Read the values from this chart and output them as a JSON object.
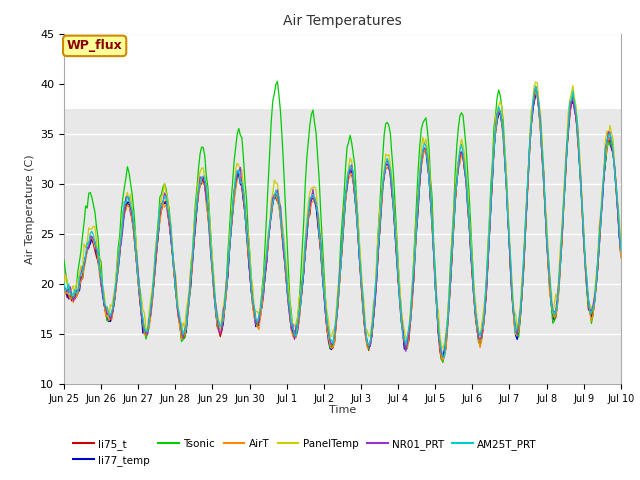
{
  "title": "Air Temperatures",
  "xlabel": "Time",
  "ylabel": "Air Temperature (C)",
  "ylim": [
    10,
    45
  ],
  "xlim_start": 0,
  "xlim_end": 360,
  "background_color": "#ffffff",
  "plot_bg_color": "#ffffff",
  "gray_band_ymin": 10,
  "gray_band_ymax": 37.5,
  "gray_band_color": "#e8e8e8",
  "grid_color": "#ffffff",
  "series_colors": {
    "li75_t": "#cc0000",
    "li77_temp": "#0000cc",
    "Tsonic": "#00cc00",
    "AirT": "#ff8800",
    "PanelTemp": "#cccc00",
    "NR01_PRT": "#9933cc",
    "AM25T_PRT": "#00cccc"
  },
  "annotation_text": "WP_flux",
  "annotation_bg": "#ffff99",
  "annotation_border": "#cc8800",
  "tick_labels": [
    "Jun 25",
    "Jun 26",
    "Jun 27",
    "Jun 28",
    "Jun 29",
    "Jun 30",
    "Jul 1",
    "Jul 2",
    "Jul 3",
    "Jul 4",
    "Jul 5",
    "Jul 6",
    "Jul 7",
    "Jul 8",
    "Jul 9",
    "Jul 10"
  ],
  "tick_positions": [
    0,
    24,
    48,
    72,
    96,
    120,
    144,
    168,
    192,
    216,
    240,
    264,
    288,
    312,
    336,
    360
  ],
  "yticks": [
    10,
    15,
    20,
    25,
    30,
    35,
    40,
    45
  ],
  "daily_mins": [
    19,
    16.5,
    15,
    14.5,
    15,
    16,
    15,
    13.5,
    13.5,
    14,
    12,
    14,
    14.5,
    16.5,
    16.5,
    17
  ],
  "daily_maxes_base": [
    20,
    26,
    29,
    28,
    31.5,
    30.5,
    28,
    29,
    32,
    32,
    34,
    32.5,
    39,
    39,
    38,
    33
  ],
  "tsonic_daily_maxes": [
    29,
    29,
    32,
    29,
    35,
    35.5,
    42,
    35,
    34.5,
    37,
    37,
    37,
    40,
    39.5,
    38.5,
    33
  ]
}
